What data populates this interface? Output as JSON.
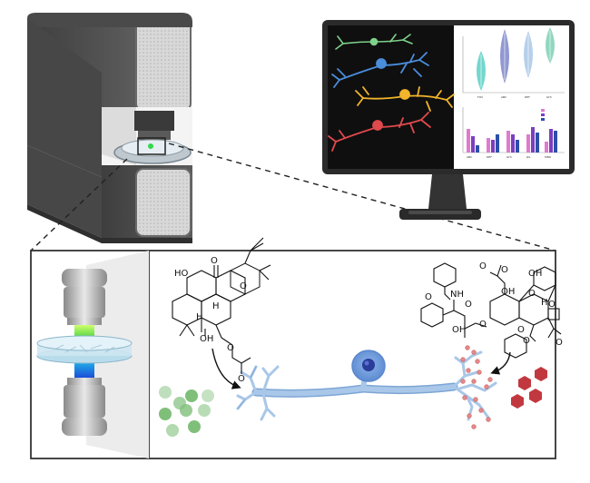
{
  "molecule_left": {
    "atoms": [
      "HO",
      "O",
      "O",
      "H",
      "HO",
      "H",
      "O",
      "OH",
      "O"
    ]
  },
  "molecule_right": {
    "atoms": [
      "O",
      "O",
      "OH",
      "O",
      "NH",
      "O",
      "OH",
      "OH",
      "O",
      "O",
      "H",
      "O",
      "O",
      "O",
      "O"
    ]
  },
  "monitor": {
    "violin_axis_labels": [
      "FOV",
      "ABC",
      "DEF",
      "GHI"
    ],
    "bar_axis_labels": [
      "ABC",
      "DEF",
      "GHI",
      "JKL",
      "MNO"
    ],
    "violin_colors": [
      "#5ad0c6",
      "#7f86c9",
      "#a9c8e8",
      "#7fd0b4"
    ],
    "bar_colors": [
      "#e07ad0",
      "#7b3fbf",
      "#2d4fa8"
    ],
    "neuron_colors": [
      "#7ed18a",
      "#4a8ddc",
      "#f2b52b",
      "#e0494d"
    ]
  },
  "colors": {
    "neuron": "#a9c7e8",
    "neuron_edge": "#7ea6d6",
    "soma": "#6d9bd8",
    "nucleus": "#2b3d9b",
    "green_beads": "#7fbf7a",
    "red_hexagons": "#c2383f",
    "red_spots": "#e58a8a"
  },
  "icons": [
    "microscope-icon",
    "objective-lens-icon",
    "petri-dish-icon",
    "monitor-icon",
    "neuron-icon",
    "arrow-icon"
  ]
}
